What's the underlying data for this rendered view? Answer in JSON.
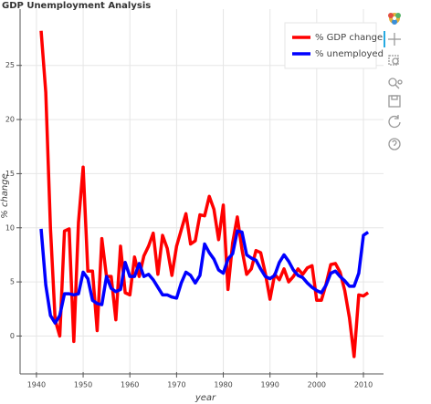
{
  "chart_data": {
    "type": "line",
    "title": "GDP Unemployment Analysis",
    "xlabel": "year",
    "ylabel": "% change",
    "x": [
      1941,
      1942,
      1943,
      1944,
      1945,
      1946,
      1947,
      1948,
      1949,
      1950,
      1951,
      1952,
      1953,
      1954,
      1955,
      1956,
      1957,
      1958,
      1959,
      1960,
      1961,
      1962,
      1963,
      1964,
      1965,
      1966,
      1967,
      1968,
      1969,
      1970,
      1971,
      1972,
      1973,
      1974,
      1975,
      1976,
      1977,
      1978,
      1979,
      1980,
      1981,
      1982,
      1983,
      1984,
      1985,
      1986,
      1987,
      1988,
      1989,
      1990,
      1991,
      1992,
      1993,
      1994,
      1995,
      1996,
      1997,
      1998,
      1999,
      2000,
      2001,
      2002,
      2003,
      2004,
      2005,
      2006,
      2007,
      2008,
      2009,
      2010,
      2011
    ],
    "series": [
      {
        "name": "% GDP change",
        "color": "#ff0000",
        "values": [
          28.2,
          22.5,
          10,
          1.5,
          0,
          9.7,
          9.9,
          -0.5,
          10.5,
          15.6,
          6,
          6,
          0.5,
          9,
          5.5,
          5.5,
          1.5,
          8.3,
          4,
          3.8,
          7.3,
          5.5,
          7.4,
          8.3,
          9.5,
          5.7,
          9.3,
          8.1,
          5.6,
          8.3,
          9.8,
          11.3,
          8.5,
          8.8,
          11.2,
          11.1,
          12.9,
          11.7,
          8.9,
          12.1,
          4.3,
          8.6,
          11,
          8,
          5.7,
          6.2,
          7.9,
          7.7,
          5.8,
          3.4,
          5.7,
          5.2,
          6.2,
          5.0,
          5.5,
          6.2,
          5.7,
          6.3,
          6.5,
          3.3,
          3.3,
          4.8,
          6.6,
          6.7,
          5.9,
          4.2,
          1.7,
          -1.9,
          3.8,
          3.7,
          4.0
        ]
      },
      {
        "name": "% unemployed",
        "color": "#0000ff",
        "values": [
          9.9,
          4.7,
          1.9,
          1.2,
          1.9,
          3.9,
          3.9,
          3.8,
          3.9,
          5.9,
          5.3,
          3.3,
          3.0,
          2.9,
          5.5,
          4.4,
          4.1,
          4.3,
          6.8,
          5.5,
          5.5,
          6.7,
          5.5,
          5.7,
          5.2,
          4.5,
          3.8,
          3.8,
          3.6,
          3.5,
          4.9,
          5.9,
          5.6,
          4.9,
          5.6,
          8.5,
          7.7,
          7.1,
          6.1,
          5.8,
          7.1,
          7.6,
          9.7,
          9.6,
          7.5,
          7.2,
          7.0,
          6.2,
          5.5,
          5.3,
          5.6,
          6.8,
          7.5,
          6.9,
          6.1,
          5.6,
          5.4,
          4.9,
          4.5,
          4.2,
          4.0,
          4.7,
          5.8,
          6.0,
          5.5,
          5.1,
          4.6,
          4.6,
          5.8,
          9.3,
          9.6
        ]
      }
    ],
    "xlim": [
      1936.5,
      2014.3
    ],
    "ylim": [
      -3.5,
      30.2
    ],
    "xticks": [
      1940,
      1950,
      1960,
      1970,
      1980,
      1990,
      2000,
      2010
    ],
    "yticks": [
      0,
      5,
      10,
      15,
      20,
      25
    ],
    "grid": true,
    "legend": "top_right"
  }
}
